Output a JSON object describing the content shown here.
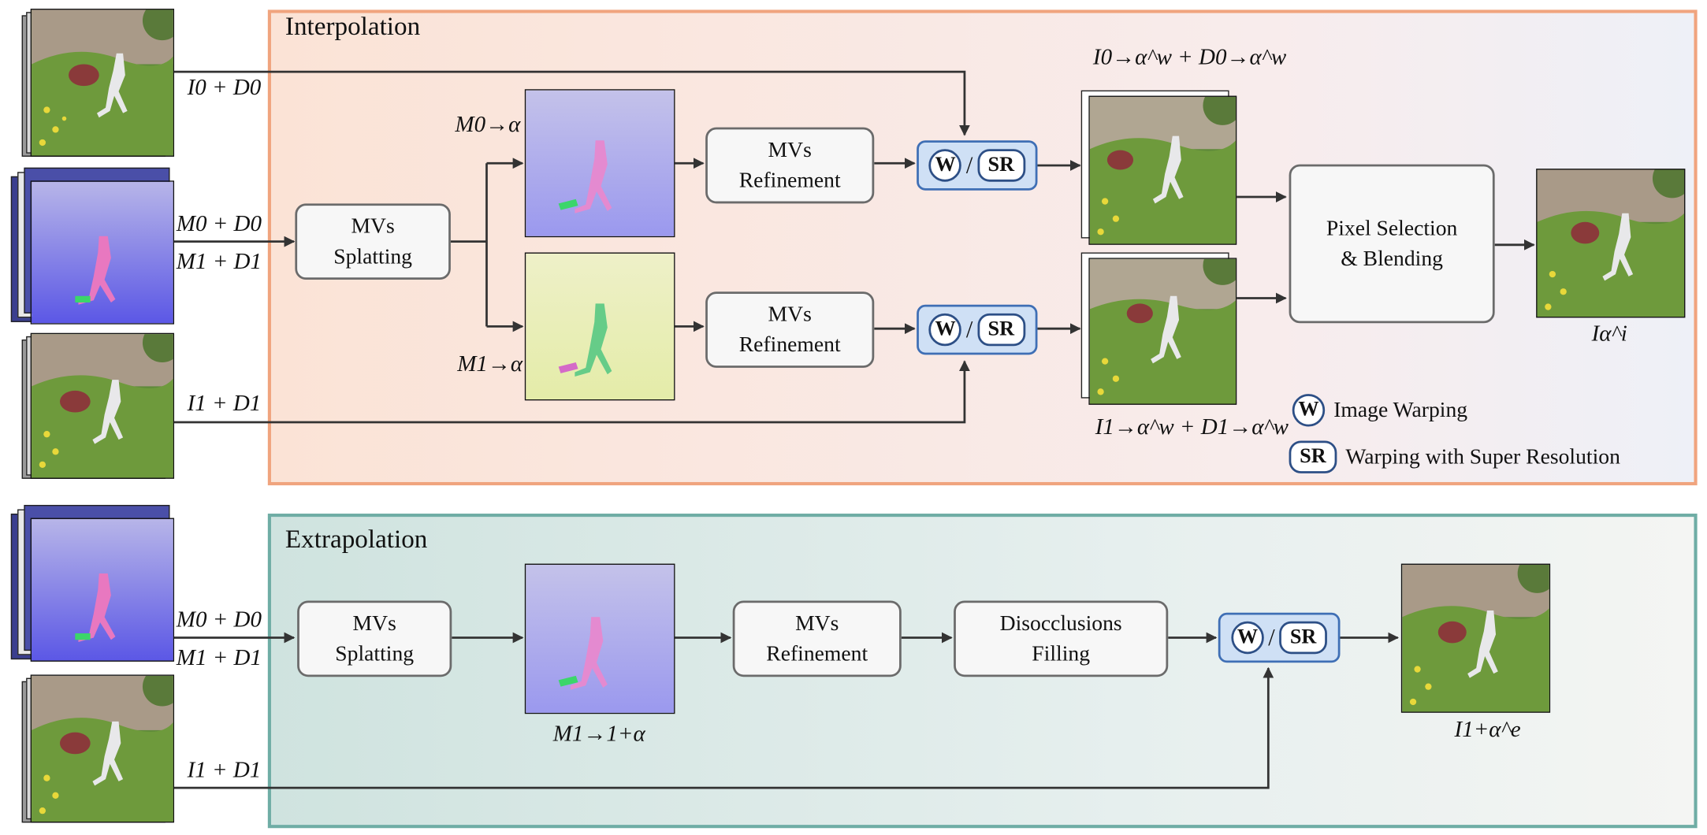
{
  "panels": {
    "interpolation_title": "Interpolation",
    "extrapolation_title": "Extrapolation"
  },
  "inputs": {
    "i0_d0": "I0 + D0",
    "m0d0_m1d1_top": "M0 + D0",
    "m1d1_top": "M1 + D1",
    "i1_d1_top": "I1 + D1",
    "m0d0_bottom": "M0 + D0",
    "m1d1_bottom": "M1 + D1",
    "i1_d1_bottom": "I1 + D1"
  },
  "interpolation": {
    "splat_label": [
      "MVs",
      "Splatting"
    ],
    "refine_top": [
      "MVs",
      "Refinement"
    ],
    "refine_bottom": [
      "MVs",
      "Refinement"
    ],
    "flow_top": "M0→α",
    "flow_bottom": "M1→α",
    "warp_top_out": "I0→α^w + D0→α^w",
    "warp_bottom_out": "I1→α^w + D1→α^w",
    "blend_label": [
      "Pixel Selection",
      "& Blending"
    ],
    "output": "Iα^i"
  },
  "extrapolation": {
    "splat_label": [
      "MVs",
      "Splatting"
    ],
    "refine_label": [
      "MVs",
      "Refinement"
    ],
    "fill_label": [
      "Disocclusions",
      "Filling"
    ],
    "flow": "M1→1+α",
    "output": "I1+α^e"
  },
  "warp_symbol": {
    "w": "W",
    "sr": "SR",
    "slash": "/"
  },
  "legend": {
    "w_text": "Image Warping",
    "sr_text": "Warping with Super Resolution"
  },
  "colors": {
    "interp_border": "#f0a47e",
    "extrap_border": "#6fada5",
    "warp_fill": "#cfe0f5",
    "warp_border": "#3f6fb5"
  }
}
